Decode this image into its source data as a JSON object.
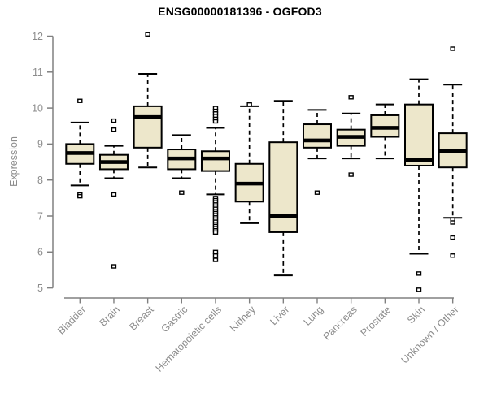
{
  "title": "ENSG00000181396 - OGFOD3",
  "y_axis": {
    "label": "Expression"
  },
  "chart_data": {
    "type": "boxplot",
    "title": "ENSG00000181396 - OGFOD3",
    "xlabel": "",
    "ylabel": "Expression",
    "ylim": [
      5,
      12
    ],
    "yticks": [
      5,
      6,
      7,
      8,
      9,
      10,
      11,
      12
    ],
    "grid": false,
    "legend_position": "none",
    "categories": [
      "Bladder",
      "Brain",
      "Breast",
      "Gastric",
      "Hematopoietic cells",
      "Kidney",
      "Liver",
      "Lung",
      "Pancreas",
      "Prostate",
      "Skin",
      "Unknown / Other"
    ],
    "boxes": [
      {
        "label": "Bladder",
        "whisker_low": 7.85,
        "q1": 8.45,
        "median": 8.75,
        "q3": 9.0,
        "whisker_high": 9.6,
        "outliers": [
          10.2,
          7.6,
          7.55
        ]
      },
      {
        "label": "Brain",
        "whisker_low": 8.05,
        "q1": 8.3,
        "median": 8.5,
        "q3": 8.7,
        "whisker_high": 8.95,
        "outliers": [
          9.65,
          9.4,
          7.6,
          5.6
        ]
      },
      {
        "label": "Breast",
        "whisker_low": 8.35,
        "q1": 8.9,
        "median": 9.75,
        "q3": 10.05,
        "whisker_high": 10.95,
        "outliers": [
          12.05
        ]
      },
      {
        "label": "Gastric",
        "whisker_low": 8.05,
        "q1": 8.3,
        "median": 8.6,
        "q3": 8.85,
        "whisker_high": 9.25,
        "outliers": [
          7.65
        ]
      },
      {
        "label": "Hematopoietic cells",
        "whisker_low": 7.6,
        "q1": 8.25,
        "median": 8.6,
        "q3": 8.8,
        "whisker_high": 9.45,
        "outliers": [
          10.0,
          9.92,
          9.85,
          9.78,
          9.7,
          9.63,
          7.5,
          7.44,
          7.38,
          7.32,
          7.26,
          7.2,
          7.14,
          7.08,
          7.02,
          6.96,
          6.9,
          6.84,
          6.78,
          6.72,
          6.66,
          6.6,
          6.54,
          6.0,
          5.9,
          5.78
        ]
      },
      {
        "label": "Kidney",
        "whisker_low": 6.8,
        "q1": 7.4,
        "median": 7.9,
        "q3": 8.45,
        "whisker_high": 10.05,
        "outliers": [
          10.1
        ]
      },
      {
        "label": "Liver",
        "whisker_low": 5.35,
        "q1": 6.55,
        "median": 7.0,
        "q3": 9.05,
        "whisker_high": 10.2,
        "outliers": []
      },
      {
        "label": "Lung",
        "whisker_low": 8.6,
        "q1": 8.9,
        "median": 9.1,
        "q3": 9.55,
        "whisker_high": 9.95,
        "outliers": [
          7.65
        ]
      },
      {
        "label": "Pancreas",
        "whisker_low": 8.6,
        "q1": 8.95,
        "median": 9.2,
        "q3": 9.4,
        "whisker_high": 9.85,
        "outliers": [
          10.3,
          8.15
        ]
      },
      {
        "label": "Prostate",
        "whisker_low": 8.6,
        "q1": 9.2,
        "median": 9.45,
        "q3": 9.8,
        "whisker_high": 10.1,
        "outliers": []
      },
      {
        "label": "Skin",
        "whisker_low": 5.95,
        "q1": 8.4,
        "median": 8.55,
        "q3": 10.1,
        "whisker_high": 10.8,
        "outliers": [
          5.4,
          4.95
        ]
      },
      {
        "label": "Unknown / Other",
        "whisker_low": 6.95,
        "q1": 8.35,
        "median": 8.8,
        "q3": 9.3,
        "whisker_high": 10.65,
        "outliers": [
          11.65,
          6.9,
          6.82,
          6.4,
          5.9
        ]
      }
    ],
    "style": {
      "box_fill": "#EDE7CB",
      "box_border": "#000000",
      "median_color": "#000000",
      "axis_color": "#808080",
      "tick_label_color": "#8C8C8C",
      "outlier_fill": "#FFFFFF",
      "background": "#FFFFFF"
    }
  }
}
